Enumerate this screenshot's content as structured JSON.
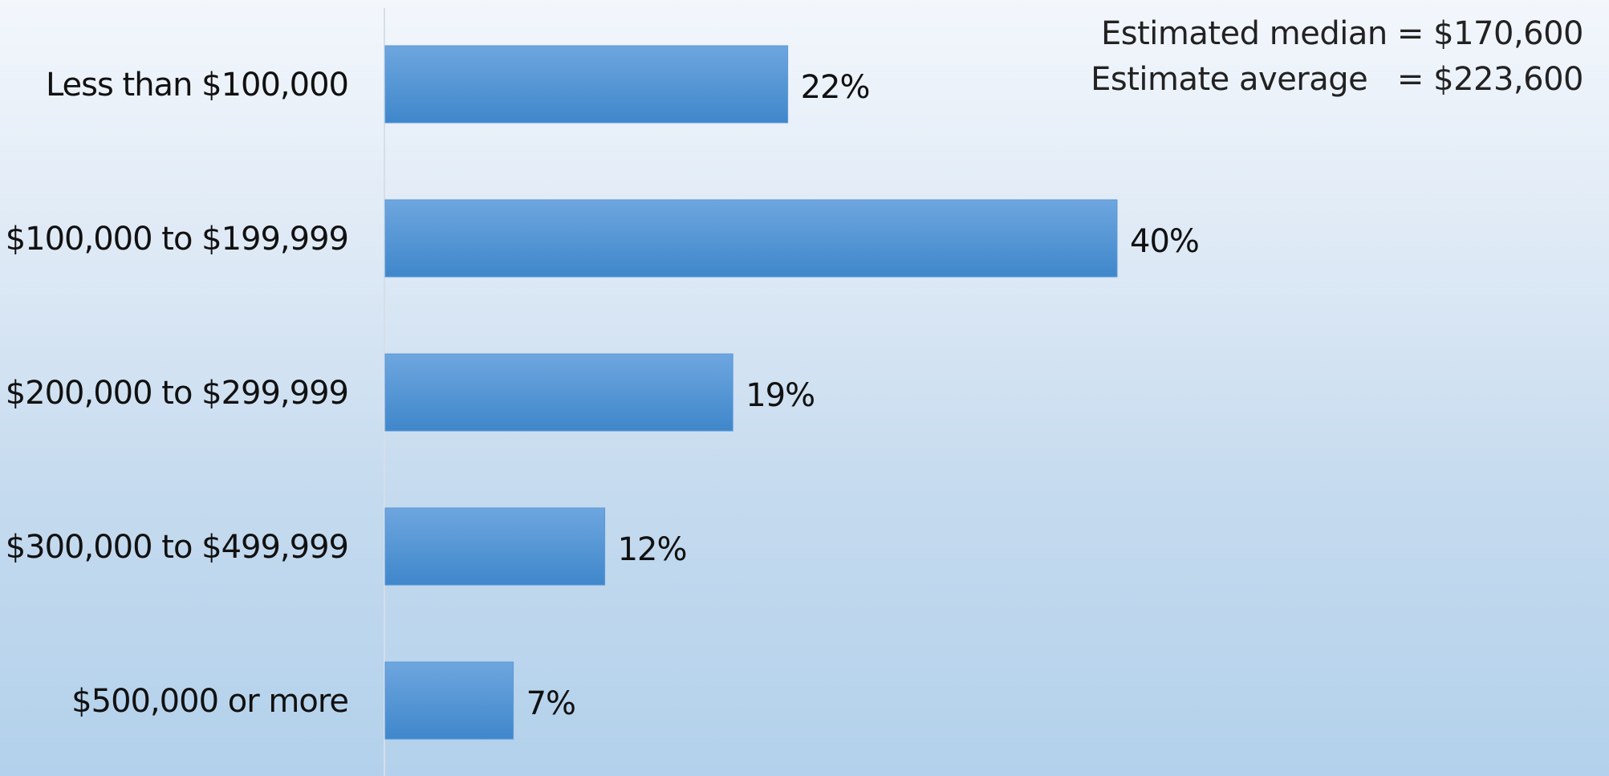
{
  "chart_data": {
    "type": "bar",
    "orientation": "horizontal",
    "categories": [
      "Less than $100,000",
      "$100,000 to $199,999",
      "$200,000 to $299,999",
      "$300,000 to $499,999",
      "$500,000 or more"
    ],
    "values": [
      22,
      40,
      19,
      12,
      7
    ],
    "value_labels": [
      "22%",
      "40%",
      "19%",
      "12%",
      "7%"
    ],
    "xlim": [
      0,
      65
    ],
    "grid": false,
    "legend": "none",
    "annotations": [
      "Estimated median = $170,600",
      "Estimate average   = $223,600"
    ],
    "colors": {
      "bar_top": "#6ea6df",
      "bar_bottom": "#3f87cb",
      "axis": "#d6dee8",
      "text": "#111111"
    }
  }
}
